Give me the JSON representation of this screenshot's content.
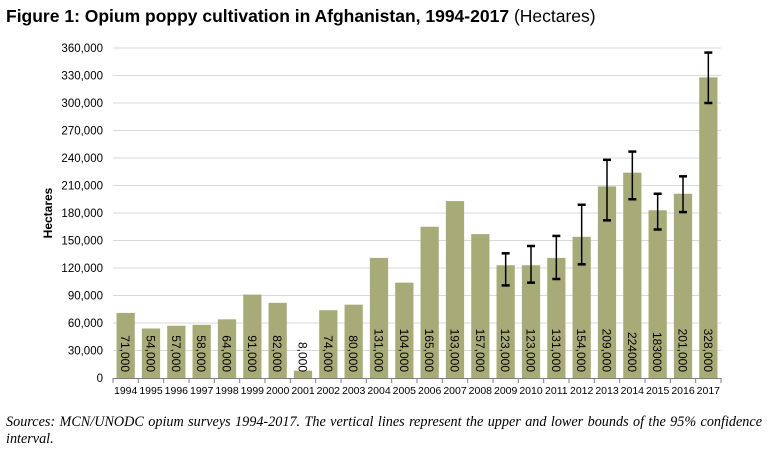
{
  "figure": {
    "title_bold": "Figure 1: Opium poppy cultivation in Afghanistan, 1994-2017",
    "title_normal": "(Hectares)",
    "footer": "Sources: MCN/UNODC opium surveys 1994-2017. The vertical lines represent the upper and lower bounds of the 95% confidence interval."
  },
  "chart_data": {
    "type": "bar",
    "title": "Figure 1: Opium poppy cultivation in Afghanistan, 1994-2017 (Hectares)",
    "xlabel": "",
    "ylabel": "Hectares",
    "ylim": [
      0,
      360000
    ],
    "yticks": [
      0,
      30000,
      60000,
      90000,
      120000,
      150000,
      180000,
      210000,
      240000,
      270000,
      300000,
      330000,
      360000
    ],
    "ytick_labels": [
      "0",
      "30,000",
      "60,000",
      "90,000",
      "120,000",
      "150,000",
      "180,000",
      "210,000",
      "240,000",
      "270,000",
      "300,000",
      "330,000",
      "360,000"
    ],
    "grid": true,
    "bar_color": "#a7ab77",
    "categories": [
      "1994",
      "1995",
      "1996",
      "1997",
      "1998",
      "1999",
      "2000",
      "2001",
      "2002",
      "2003",
      "2004",
      "2005",
      "2006",
      "2007",
      "2008",
      "2009",
      "2010",
      "2011",
      "2012",
      "2013",
      "2014",
      "2015",
      "2016",
      "2017"
    ],
    "values": [
      71000,
      54000,
      57000,
      58000,
      64000,
      91000,
      82000,
      8000,
      74000,
      80000,
      131000,
      104000,
      165000,
      193000,
      157000,
      123000,
      123000,
      131000,
      154000,
      209000,
      224000,
      183000,
      201000,
      328000
    ],
    "data_labels": [
      "71,000",
      "54,000",
      "57,000",
      "58,000",
      "64,000",
      "91,000",
      "82,000",
      "8,000",
      "74,000",
      "80,000",
      "131,000",
      "104,000",
      "165,000",
      "193,000",
      "157,000",
      "123,000",
      "123,000",
      "131,000",
      "154,000",
      "209,000",
      "224000",
      "183000",
      "201,000",
      "328,000"
    ],
    "error_bars": {
      "2009": [
        101000,
        136000
      ],
      "2010": [
        104000,
        144000
      ],
      "2011": [
        108000,
        155000
      ],
      "2012": [
        124000,
        189000
      ],
      "2013": [
        172000,
        238000
      ],
      "2014": [
        195000,
        247000
      ],
      "2015": [
        162000,
        201000
      ],
      "2016": [
        181000,
        220000
      ],
      "2017": [
        300000,
        355000
      ]
    },
    "legend": "none"
  }
}
